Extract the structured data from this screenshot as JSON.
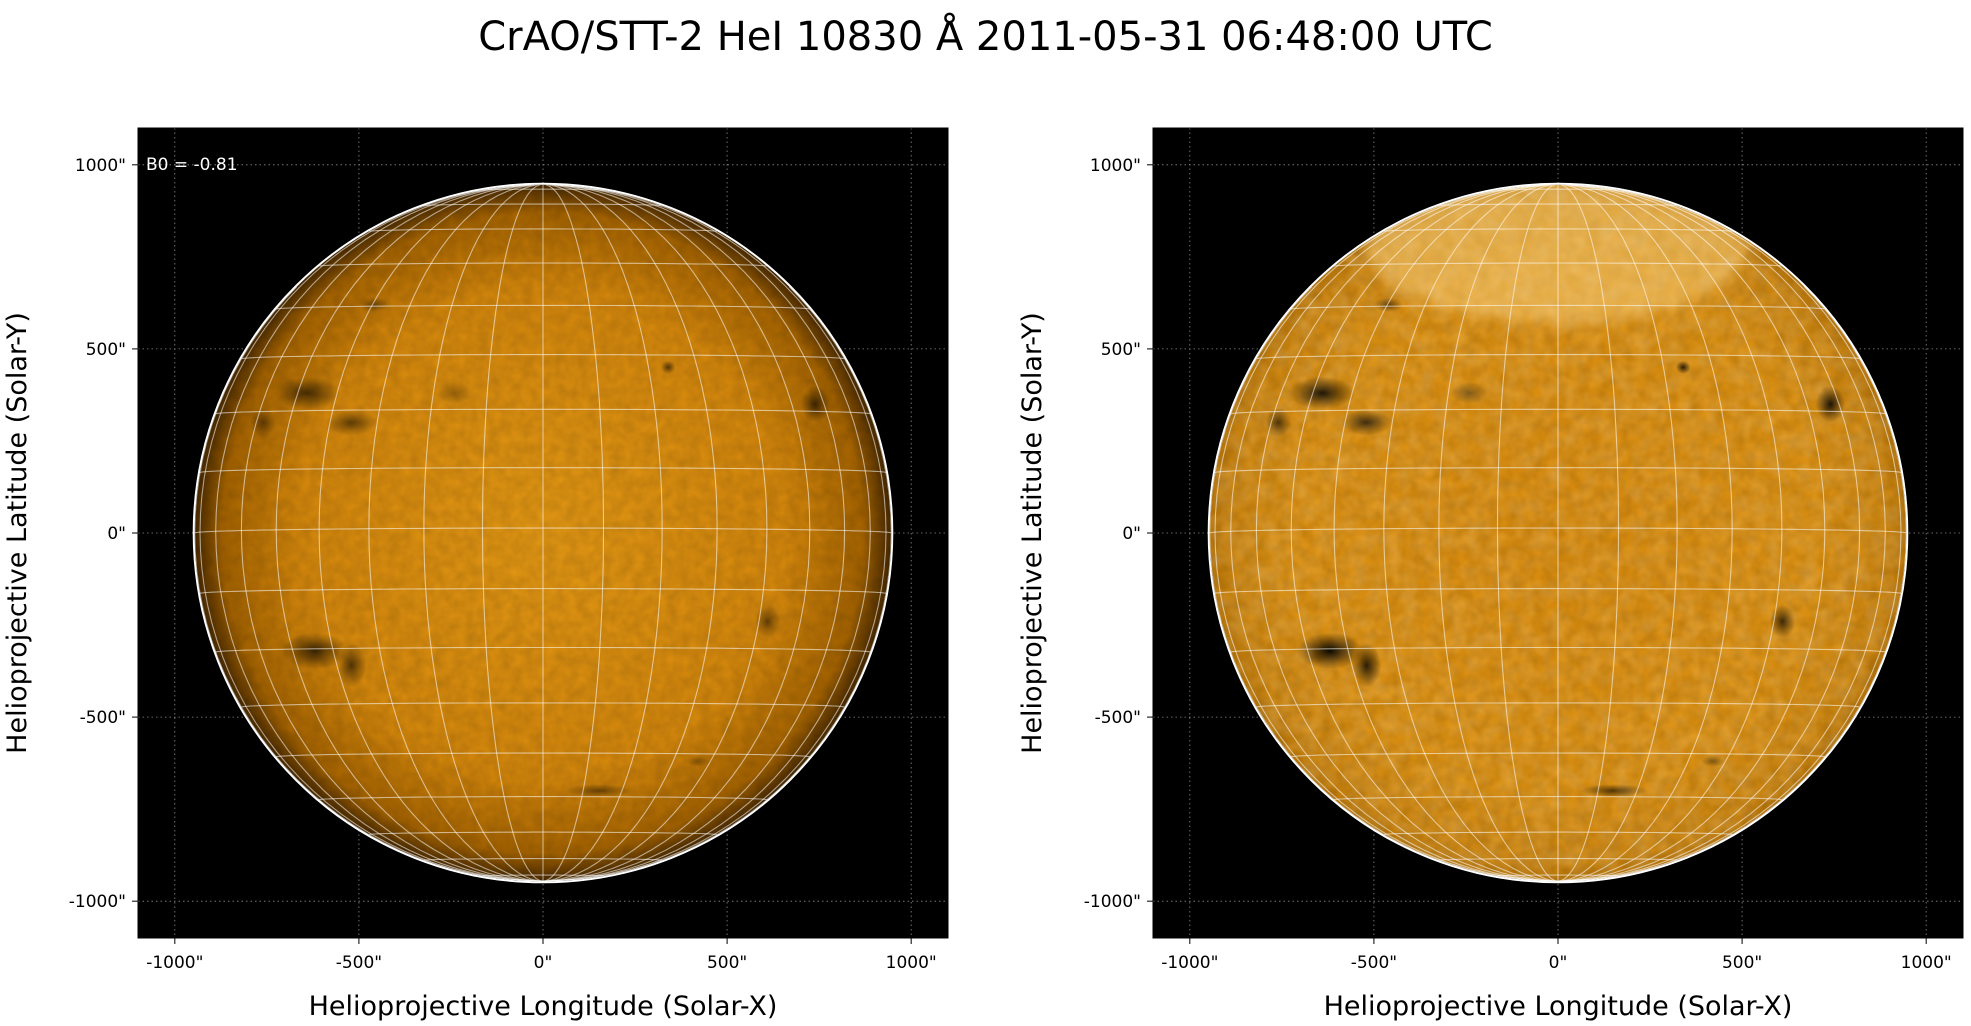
{
  "title": "CrAO/STT-2 HeI 10830 Å 2011-05-31 06:48:00 UTC",
  "colors": {
    "disk_center": "#e89b14",
    "disk_mid": "#d98a0c",
    "disk_limb": "#4a2a00",
    "background": "#000000",
    "grid": "#ffffff"
  },
  "panels": [
    {
      "id": "left",
      "xlabel": "Helioprojective Longitude (Solar-X)",
      "ylabel": "Helioprojective Latitude (Solar-Y)",
      "annotation": "B0 = -0.81",
      "xticks": [
        "-1000\"",
        "-500\"",
        "0\"",
        "500\"",
        "1000\""
      ],
      "yticks": [
        "1000\"",
        "500\"",
        "0\"",
        "-500\"",
        "-1000\""
      ],
      "enhanced": false
    },
    {
      "id": "right",
      "xlabel": "Helioprojective Longitude (Solar-X)",
      "ylabel": "Helioprojective Latitude (Solar-Y)",
      "annotation": "",
      "xticks": [
        "-1000\"",
        "-500\"",
        "0\"",
        "500\"",
        "1000\""
      ],
      "yticks": [
        "1000\"",
        "500\"",
        "0\"",
        "-500\"",
        "-1000\""
      ],
      "enhanced": true
    }
  ],
  "axis": {
    "tick_values": [
      -1000,
      -500,
      0,
      500,
      1000
    ],
    "range": [
      -1100,
      1100
    ],
    "unit": "arcsec"
  },
  "solar_radius_arcsec": 946,
  "b0_deg": -0.81,
  "features": [
    {
      "x": -640,
      "y": 380,
      "rx": 90,
      "ry": 45,
      "strength": 0.85
    },
    {
      "x": -520,
      "y": 300,
      "rx": 70,
      "ry": 35,
      "strength": 0.7
    },
    {
      "x": -760,
      "y": 300,
      "rx": 35,
      "ry": 40,
      "strength": 0.6
    },
    {
      "x": -620,
      "y": -320,
      "rx": 90,
      "ry": 50,
      "strength": 0.95
    },
    {
      "x": -520,
      "y": -360,
      "rx": 40,
      "ry": 60,
      "strength": 0.8
    },
    {
      "x": 340,
      "y": 450,
      "rx": 20,
      "ry": 18,
      "strength": 0.8
    },
    {
      "x": 740,
      "y": 350,
      "rx": 40,
      "ry": 50,
      "strength": 0.85
    },
    {
      "x": 610,
      "y": -240,
      "rx": 35,
      "ry": 45,
      "strength": 0.7
    },
    {
      "x": -460,
      "y": 620,
      "rx": 40,
      "ry": 20,
      "strength": 0.5
    },
    {
      "x": 150,
      "y": -700,
      "rx": 90,
      "ry": 18,
      "strength": 0.6
    },
    {
      "x": 420,
      "y": -620,
      "rx": 30,
      "ry": 15,
      "strength": 0.4
    },
    {
      "x": -240,
      "y": 380,
      "rx": 50,
      "ry": 30,
      "strength": 0.4
    }
  ]
}
